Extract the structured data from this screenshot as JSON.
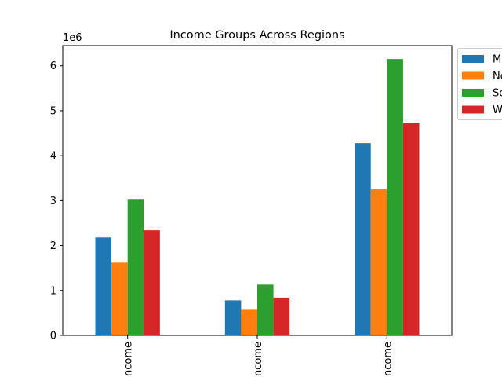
{
  "chart_data": {
    "type": "bar",
    "title": "Income Groups Across Regions",
    "xlabel": "",
    "ylabel": "",
    "y_offset_label": "1e6",
    "ylim": [
      0,
      6.45
    ],
    "y_ticks": [
      "0",
      "1",
      "2",
      "3",
      "4",
      "5",
      "6"
    ],
    "categories": [
      "ncome",
      "ncome",
      "ncome"
    ],
    "series": [
      {
        "name": "M",
        "color": "#1f77b4",
        "values": [
          2.18,
          0.78,
          4.28
        ]
      },
      {
        "name": "No",
        "color": "#ff7f0e",
        "values": [
          1.62,
          0.57,
          3.25
        ]
      },
      {
        "name": "So",
        "color": "#2ca02c",
        "values": [
          3.02,
          1.13,
          6.15
        ]
      },
      {
        "name": "W",
        "color": "#d62728",
        "values": [
          2.34,
          0.84,
          4.73
        ]
      }
    ],
    "legend_position": "outside-top-right",
    "grid": false
  }
}
